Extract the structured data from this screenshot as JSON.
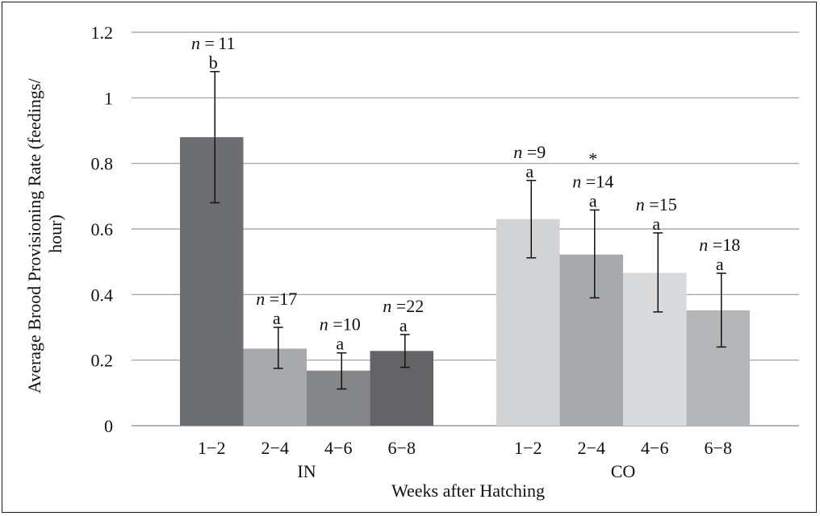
{
  "chart_data": {
    "type": "bar",
    "title": "",
    "xlabel": "Weeks after Hatching",
    "ylabel": "Average Brood Provisioning Rate (feedings/hour)",
    "ylabel_lines": [
      "Average Brood Provisioning Rate (feedings/",
      "hour)"
    ],
    "ylim": [
      0,
      1.2
    ],
    "yticks": [
      0,
      0.2,
      0.4,
      0.6,
      0.8,
      1,
      1.2
    ],
    "ytick_labels": [
      "0",
      "0.2",
      "0.4",
      "0.6",
      "0.8",
      "1",
      "1.2"
    ],
    "grid": true,
    "legend": "none",
    "groups": [
      {
        "name": "IN",
        "bars": [
          {
            "category": "1−2",
            "value": 0.88,
            "err_low": 0.68,
            "err_high": 1.08,
            "n_label": "n",
            "n_eq": " = 11",
            "letter": "b",
            "star": "",
            "color": "#6d6e71"
          },
          {
            "category": "2−4",
            "value": 0.235,
            "err_low": 0.175,
            "err_high": 0.3,
            "n_label": "n",
            "n_eq": " =17",
            "letter": "a",
            "star": "",
            "color": "#a7a9ac"
          },
          {
            "category": "4−6",
            "value": 0.168,
            "err_low": 0.112,
            "err_high": 0.222,
            "n_label": "n",
            "n_eq": " =10",
            "letter": "a",
            "star": "",
            "color": "#858688"
          },
          {
            "category": "6−8",
            "value": 0.228,
            "err_low": 0.178,
            "err_high": 0.278,
            "n_label": "n",
            "n_eq": " =22",
            "letter": "a",
            "star": "",
            "color": "#646466"
          }
        ]
      },
      {
        "name": "CO",
        "bars": [
          {
            "category": "1−2",
            "value": 0.63,
            "err_low": 0.512,
            "err_high": 0.748,
            "n_label": "n",
            "n_eq": " =9",
            "letter": "a",
            "star": "",
            "color": "#d1d3d4"
          },
          {
            "category": "2−4",
            "value": 0.522,
            "err_low": 0.39,
            "err_high": 0.658,
            "n_label": "n",
            "n_eq": " =14",
            "letter": "a",
            "star": "*",
            "color": "#a7a9ac"
          },
          {
            "category": "4−6",
            "value": 0.466,
            "err_low": 0.347,
            "err_high": 0.588,
            "n_label": "n",
            "n_eq": " =15",
            "letter": "a",
            "star": "",
            "color": "#d9dadb"
          },
          {
            "category": "6−8",
            "value": 0.352,
            "err_low": 0.24,
            "err_high": 0.465,
            "n_label": "n",
            "n_eq": " =18",
            "letter": "a",
            "star": "",
            "color": "#b5b6b8"
          }
        ]
      }
    ]
  }
}
